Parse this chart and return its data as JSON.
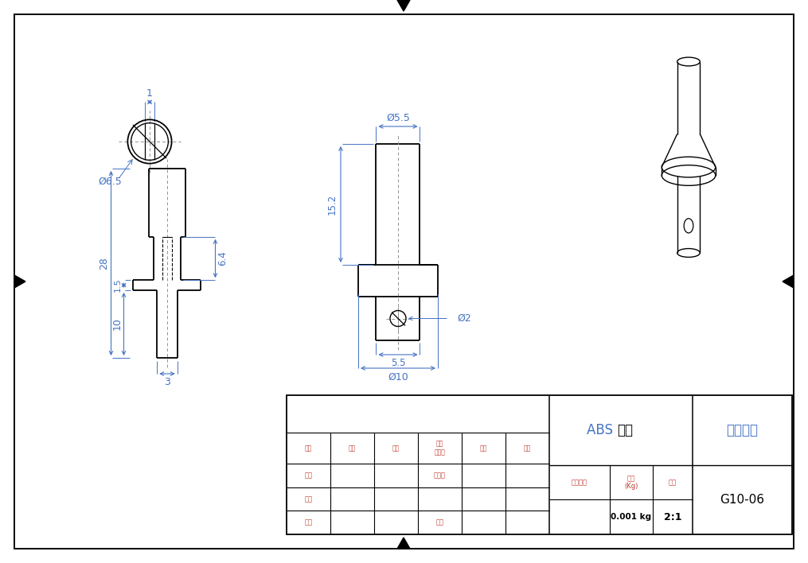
{
  "bg_color": "#ffffff",
  "border_color": "#000000",
  "dim_color": "#4472c4",
  "draw_color": "#000000",
  "label_color": "#c0392b",
  "title": "天线转轴",
  "part_num": "G10-06",
  "material_abs": "ABS ",
  "material_cn": "塑料",
  "scale": "2:1",
  "weight": "0.001 kg",
  "row4_labels": [
    "标记",
    "处数",
    "分区",
    "更改\n文件号",
    "签名",
    "日期"
  ],
  "label_sheji": "设计",
  "label_biaozhunhua": "标准化",
  "label_shenjiao": "审核",
  "label_gongyi": "工艺",
  "label_pizhun": "批准",
  "label_jieduan": "阶段标记",
  "label_zhongliang": "重量\n(Kg)",
  "label_bili": "比例"
}
